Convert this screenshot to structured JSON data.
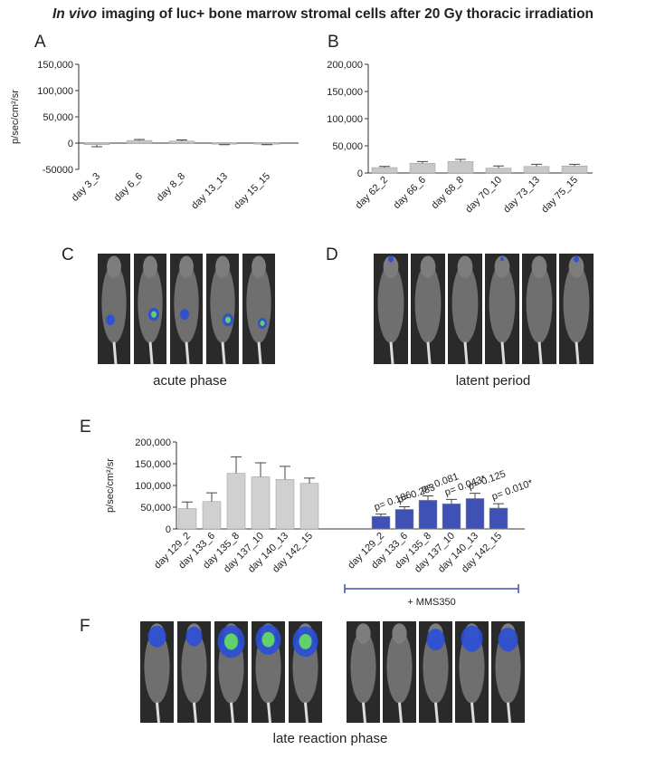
{
  "figure": {
    "title_emphasis": "In vivo",
    "title": "imaging of luc+ bone marrow stromal cells after 20 Gy thoracic irradiation"
  },
  "panels": {
    "A": "A",
    "B": "B",
    "C": "C",
    "D": "D",
    "E": "E",
    "F": "F"
  },
  "captions": {
    "acute": "acute phase",
    "latent": "latent period",
    "late": "late reaction phase"
  },
  "chart_data": [
    {
      "type": "bar",
      "y_label": "p/sec/cm²/sr",
      "ylim": [
        -50000,
        150000
      ],
      "yticks": [
        -50000,
        0,
        {
          "value": 50000,
          "label": "50,000"
        },
        {
          "value": 100000,
          "label": "100,000"
        },
        {
          "value": 150000,
          "label": "150,000"
        }
      ],
      "groups": [
        {
          "color": "#c8c8c8",
          "categories": [
            "day 3_3",
            "day 6_6",
            "day 8_8",
            "day 13_13",
            "day 15_15"
          ],
          "values": [
            -3000,
            5000,
            4000,
            -2000,
            -2000
          ],
          "errors": [
            4000,
            2000,
            2000,
            1000,
            1000
          ]
        }
      ]
    },
    {
      "type": "bar",
      "ylim": [
        0,
        200000
      ],
      "yticks": [
        0,
        {
          "value": 50000,
          "label": "50,000"
        },
        {
          "value": 100000,
          "label": "100,000"
        },
        {
          "value": 150000,
          "label": "150,000"
        },
        {
          "value": 200000,
          "label": "200,000"
        }
      ],
      "groups": [
        {
          "color": "#c8c8c8",
          "categories": [
            "day 62_2",
            "day 66_6",
            "day 68_8",
            "day 70_10",
            "day 73_13",
            "day 75_15"
          ],
          "values": [
            10000,
            18000,
            21000,
            9000,
            12000,
            13000
          ],
          "errors": [
            2000,
            3000,
            4000,
            4000,
            4000,
            3000
          ]
        }
      ]
    },
    {
      "type": "bar",
      "y_label": "p/sec/cm²/sr",
      "ylim": [
        0,
        200000
      ],
      "yticks": [
        0,
        {
          "value": 50000,
          "label": "50,000"
        },
        {
          "value": 100000,
          "label": "100,000"
        },
        {
          "value": 150000,
          "label": "150,000"
        },
        {
          "value": 200000,
          "label": "200,000"
        }
      ],
      "groups": [
        {
          "color": "#d0d0d0",
          "categories": [
            "day 129_2",
            "day 133_6",
            "day 135_8",
            "day 137_10",
            "day 140_13",
            "day 142_15"
          ],
          "values": [
            47000,
            63000,
            128000,
            120000,
            114000,
            105000
          ],
          "errors": [
            15000,
            20000,
            38000,
            32000,
            30000,
            12000
          ]
        },
        {
          "color": "#3f51b5",
          "categories": [
            "day 129_2",
            "day 133_6",
            "day 135_8",
            "day 137_10",
            "day 140_13",
            "day 142_15"
          ],
          "values": [
            29000,
            45000,
            66000,
            58000,
            70000,
            48000
          ],
          "errors": [
            5000,
            6000,
            10000,
            10000,
            12000,
            10000
          ],
          "annotations": [
            "p= 0.186",
            "p= 0.283",
            "p= 0.081",
            "p= 0.043*",
            "p= 0.125",
            "p= 0.010*"
          ],
          "bracket_label": "+ MMS350"
        }
      ]
    }
  ]
}
